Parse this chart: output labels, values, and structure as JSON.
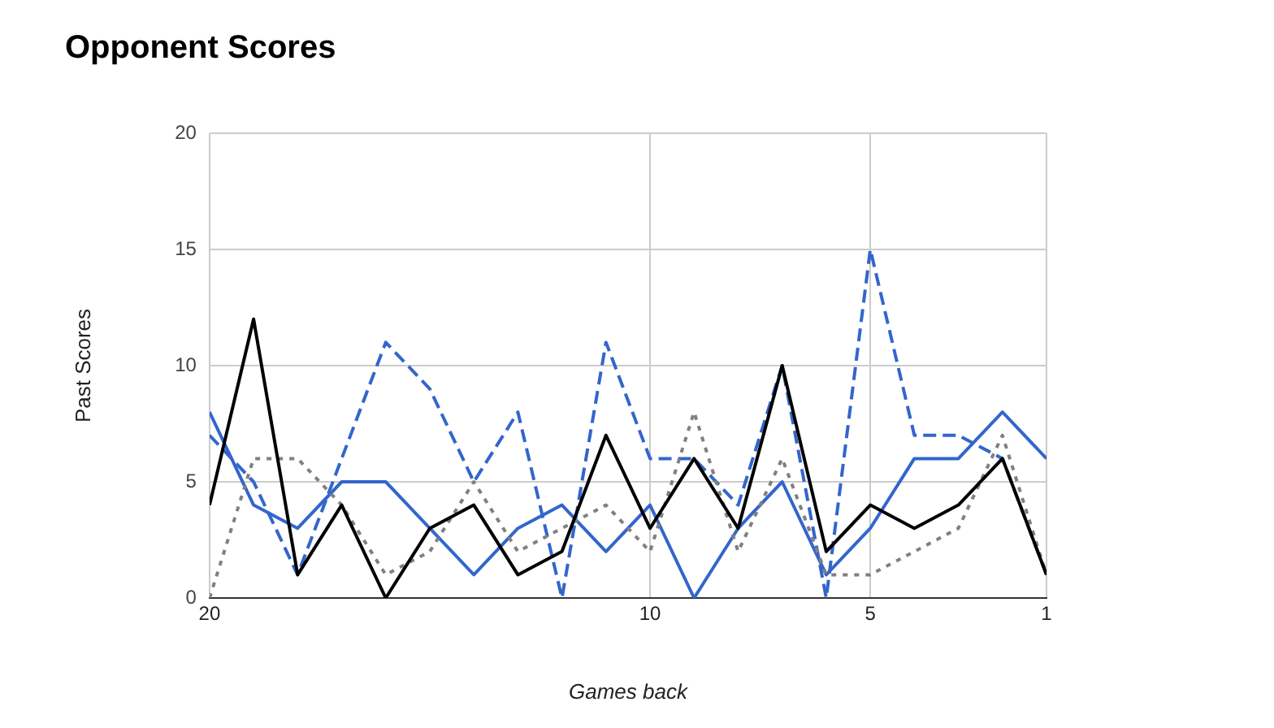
{
  "chart_data": {
    "type": "line",
    "title": "Opponent Scores",
    "xlabel": "Games back",
    "ylabel": "Past Scores",
    "x": [
      20,
      19,
      18,
      17,
      16,
      15,
      14,
      13,
      12,
      11,
      10,
      9,
      8,
      7,
      6,
      5,
      4,
      3,
      2,
      1
    ],
    "series": [
      {
        "color": "#000000",
        "line_style": "solid",
        "values": [
          4,
          12,
          1,
          4,
          0,
          3,
          4,
          1,
          2,
          7,
          3,
          6,
          3,
          10,
          2,
          4,
          3,
          4,
          6,
          1
        ]
      },
      {
        "color": "#808080",
        "line_style": "dotted",
        "values": [
          0,
          6,
          6,
          4,
          1,
          2,
          5,
          2,
          3,
          4,
          2,
          8,
          2,
          6,
          1,
          1,
          2,
          3,
          7,
          1
        ]
      },
      {
        "color": "#3366cc",
        "line_style": "solid",
        "values": [
          8,
          4,
          3,
          5,
          5,
          3,
          1,
          3,
          4,
          2,
          4,
          0,
          3,
          5,
          1,
          3,
          6,
          6,
          8,
          6
        ]
      },
      {
        "color": "#3366cc",
        "line_style": "dashed",
        "values": [
          7,
          5,
          1,
          6,
          11,
          9,
          5,
          8,
          0,
          11,
          6,
          6,
          4,
          10,
          0,
          15,
          7,
          7,
          6,
          1
        ]
      }
    ],
    "xlim": [
      20,
      1
    ],
    "xticks": [
      20,
      10,
      5,
      1
    ],
    "ylim": [
      0,
      20
    ],
    "yticks": [
      0,
      5,
      10,
      15,
      20
    ],
    "grid": true,
    "legend": false,
    "marker": "none"
  }
}
